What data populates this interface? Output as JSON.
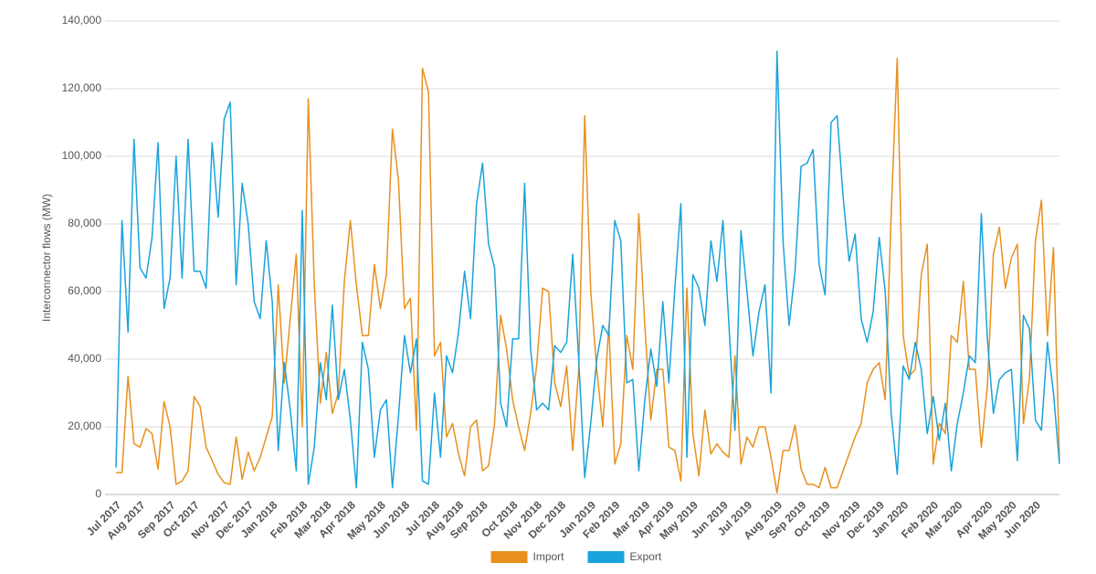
{
  "chart_data": {
    "type": "line",
    "y_label": "Interconnector flows (MW)",
    "categories": [
      "Jul 2017",
      null,
      null,
      null,
      "Aug 2017",
      null,
      null,
      null,
      null,
      "Sep 2017",
      null,
      null,
      null,
      "Oct 2017",
      null,
      null,
      null,
      null,
      "Nov 2017",
      null,
      null,
      null,
      "Dec 2017",
      null,
      null,
      null,
      "Jan 2018",
      null,
      null,
      null,
      null,
      "Feb 2018",
      null,
      null,
      null,
      "Mar 2018",
      null,
      null,
      null,
      "Apr 2018",
      null,
      null,
      null,
      null,
      "May 2018",
      null,
      null,
      null,
      "Jun 2018",
      null,
      null,
      null,
      null,
      "Jul 2018",
      null,
      null,
      null,
      "Aug 2018",
      null,
      null,
      null,
      "Sep 2018",
      null,
      null,
      null,
      null,
      "Oct 2018",
      null,
      null,
      null,
      "Nov 2018",
      null,
      null,
      null,
      "Dec 2018",
      null,
      null,
      null,
      null,
      "Jan 2019",
      null,
      null,
      null,
      "Feb 2019",
      null,
      null,
      null,
      null,
      "Mar 2019",
      null,
      null,
      null,
      "Apr 2019",
      null,
      null,
      null,
      "May 2019",
      null,
      null,
      null,
      null,
      "Jun 2019",
      null,
      null,
      null,
      "Jul 2019",
      null,
      null,
      null,
      null,
      "Aug 2019",
      null,
      null,
      null,
      "Sep 2019",
      null,
      null,
      null,
      "Oct 2019",
      null,
      null,
      null,
      null,
      "Nov 2019",
      null,
      null,
      null,
      "Dec 2019",
      null,
      null,
      null,
      "Jan 2020",
      null,
      null,
      null,
      null,
      "Feb 2020",
      null,
      null,
      null,
      "Mar 2020",
      null,
      null,
      null,
      null,
      "Apr 2020",
      null,
      null,
      null,
      "May 2020",
      null,
      null,
      null,
      "Jun 2020",
      null,
      null,
      null,
      null
    ],
    "series": [
      {
        "name": "Import",
        "color": "#e8901e",
        "values": [
          6500,
          6500,
          35000,
          15000,
          14000,
          19500,
          18000,
          7500,
          27500,
          20000,
          3000,
          4000,
          7000,
          29000,
          26000,
          14000,
          10000,
          6000,
          3500,
          3000,
          17000,
          4500,
          12500,
          7000,
          11000,
          17000,
          23000,
          62000,
          33000,
          52000,
          71000,
          20000,
          117000,
          62000,
          27000,
          42000,
          24000,
          30000,
          63000,
          81000,
          62000,
          47000,
          47000,
          68000,
          55000,
          65000,
          108000,
          93000,
          55000,
          58000,
          19000,
          126000,
          119000,
          41000,
          45000,
          17000,
          21000,
          12000,
          5500,
          20000,
          22000,
          7000,
          8500,
          21000,
          53000,
          43000,
          28000,
          20000,
          13000,
          24000,
          38000,
          61000,
          60000,
          33000,
          26000,
          38000,
          13000,
          37000,
          112000,
          60000,
          37000,
          20000,
          50000,
          9000,
          15000,
          47000,
          37000,
          83000,
          50000,
          22000,
          37000,
          37000,
          14000,
          13000,
          4000,
          61000,
          18000,
          5500,
          25000,
          12000,
          15000,
          12500,
          11000,
          41000,
          9000,
          17000,
          14000,
          20000,
          20000,
          11000,
          500,
          13000,
          13000,
          20500,
          7500,
          3000,
          3000,
          2000,
          8000,
          2000,
          2000,
          7000,
          12000,
          17000,
          21000,
          33000,
          37000,
          39000,
          28000,
          83000,
          129000,
          47000,
          35000,
          37000,
          65000,
          74000,
          9000,
          21000,
          18000,
          47000,
          45000,
          63000,
          37000,
          37000,
          14000,
          32000,
          71000,
          79000,
          61000,
          70000,
          74000,
          21000,
          34000,
          75000,
          87000,
          47000,
          73000,
          10000
        ]
      },
      {
        "name": "Export",
        "color": "#1aa3dc",
        "values": [
          8000,
          81000,
          48000,
          105000,
          67000,
          64000,
          76000,
          104000,
          55000,
          64000,
          100000,
          64000,
          105000,
          66000,
          66000,
          61000,
          104000,
          82000,
          111000,
          116000,
          62000,
          92000,
          80000,
          57000,
          52000,
          75000,
          57000,
          13000,
          39000,
          25000,
          7000,
          84000,
          3000,
          14000,
          39000,
          28000,
          56000,
          28000,
          37000,
          22000,
          2000,
          45000,
          37000,
          11000,
          25000,
          28000,
          2000,
          23000,
          47000,
          36000,
          46000,
          4000,
          3000,
          30000,
          11000,
          41000,
          36000,
          48000,
          66000,
          52000,
          86000,
          98000,
          74000,
          67000,
          27000,
          20000,
          46000,
          46000,
          92000,
          43000,
          25000,
          27000,
          25000,
          44000,
          42000,
          45000,
          71000,
          40000,
          5000,
          21000,
          40000,
          50000,
          47000,
          81000,
          75000,
          33000,
          34000,
          7000,
          28000,
          43000,
          32000,
          57000,
          33000,
          61000,
          86000,
          11000,
          65000,
          61000,
          50000,
          75000,
          63000,
          81000,
          50000,
          19000,
          78000,
          60000,
          41000,
          54000,
          62000,
          30000,
          131000,
          75000,
          50000,
          66000,
          97000,
          98000,
          102000,
          68000,
          59000,
          110000,
          112000,
          88000,
          69000,
          77000,
          52000,
          45000,
          54000,
          76000,
          60000,
          24000,
          6000,
          38000,
          34000,
          45000,
          37000,
          18000,
          29000,
          16000,
          27000,
          7000,
          21000,
          30000,
          41000,
          39000,
          83000,
          46000,
          24000,
          34000,
          36000,
          37000,
          10000,
          53000,
          49000,
          22000,
          19000,
          45000,
          30000,
          9000
        ]
      }
    ],
    "ylim": [
      0,
      140000
    ],
    "yticks": [
      0,
      {
        "value": 20000,
        "label": "20,000"
      },
      {
        "value": 40000,
        "label": "40,000"
      },
      {
        "value": 60000,
        "label": "60,000"
      },
      {
        "value": 80000,
        "label": "80,000"
      },
      {
        "value": 100000,
        "label": "100,000"
      },
      {
        "value": 120000,
        "label": "120,000"
      },
      {
        "value": 140000,
        "label": "140,000"
      }
    ],
    "grid": true,
    "legend": "bottom"
  }
}
